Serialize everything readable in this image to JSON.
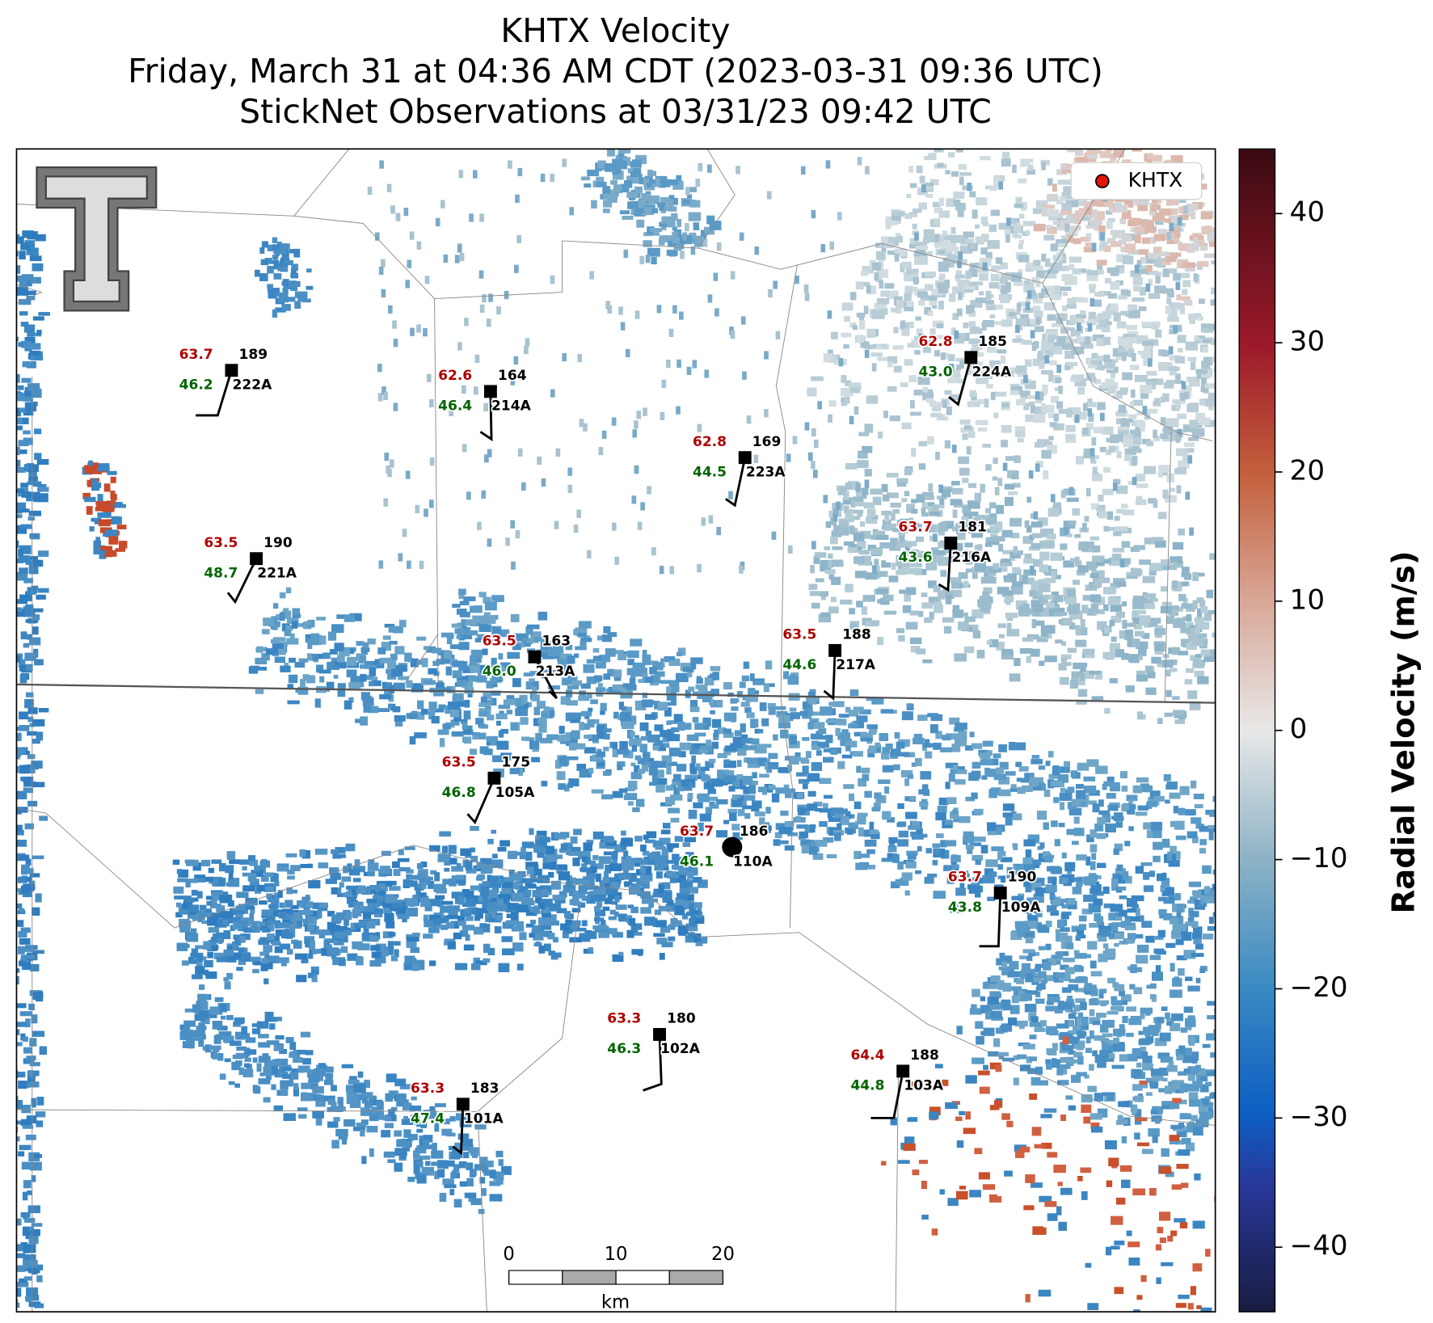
{
  "header": {
    "title": "KHTX Velocity",
    "subtitle": "Friday, March 31 at 04:36 AM CDT (2023-03-31 09:36 UTC)",
    "observations": "StickNet Observations at 03/31/23 09:42 UTC"
  },
  "legend": {
    "label": "KHTX"
  },
  "colorbar": {
    "label": "Radial Velocity (m/s)",
    "lim": [
      -45,
      45
    ],
    "ticks": [
      {
        "value": -40,
        "label": "−40"
      },
      {
        "value": -30,
        "label": "−30"
      },
      {
        "value": -20,
        "label": "−20"
      },
      {
        "value": -10,
        "label": "−10"
      },
      0,
      10,
      20,
      30,
      40
    ]
  },
  "scale_bar": {
    "ticks": [
      0,
      10,
      20
    ],
    "unit": "km"
  },
  "stations": [
    {
      "temp": "63.7",
      "dir": "189",
      "dew": "46.2",
      "id": "222A"
    },
    {
      "temp": "62.6",
      "dir": "164",
      "dew": "46.4",
      "id": "214A"
    },
    {
      "temp": "62.8",
      "dir": "169",
      "dew": "44.5",
      "id": "223A"
    },
    {
      "temp": "62.8",
      "dir": "185",
      "dew": "43.0",
      "id": "224A"
    },
    {
      "temp": "63.5",
      "dir": "190",
      "dew": "48.7",
      "id": "221A"
    },
    {
      "temp": "63.7",
      "dir": "181",
      "dew": "43.6",
      "id": "216A"
    },
    {
      "temp": "63.5",
      "dir": "163",
      "dew": "46.0",
      "id": "213A"
    },
    {
      "temp": "63.5",
      "dir": "188",
      "dew": "44.6",
      "id": "217A"
    },
    {
      "temp": "63.5",
      "dir": "175",
      "dew": "46.8",
      "id": "105A"
    },
    {
      "temp": "63.7",
      "dir": "186",
      "dew": "46.1",
      "id": "110A"
    },
    {
      "temp": "63.7",
      "dir": "190",
      "dew": "43.8",
      "id": "109A"
    },
    {
      "temp": "63.3",
      "dir": "180",
      "dew": "46.3",
      "id": "102A"
    },
    {
      "temp": "64.4",
      "dir": "188",
      "dew": "44.8",
      "id": "103A"
    },
    {
      "temp": "63.3",
      "dir": "183",
      "dew": "47.4",
      "id": "101A"
    }
  ]
}
